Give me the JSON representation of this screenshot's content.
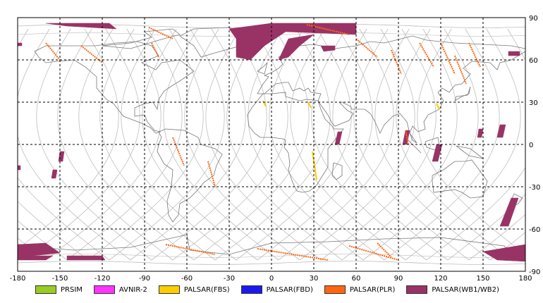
{
  "chart_data": {
    "type": "map",
    "projection": "equirectangular",
    "xlim": [
      -180,
      180
    ],
    "ylim": [
      -90,
      90
    ],
    "x_ticks": [
      -180,
      -150,
      -120,
      -90,
      -60,
      -30,
      0,
      30,
      60,
      90,
      120,
      150,
      180
    ],
    "x_tick_labels": [
      "-180",
      "-150",
      "-120",
      "-90",
      "-60",
      "-30",
      "0",
      "30",
      "60",
      "90",
      "120",
      "150",
      "180"
    ],
    "y_ticks": [
      90,
      60,
      30,
      0,
      -30,
      -60,
      -90
    ],
    "y_tick_labels": [
      "90",
      "60",
      "30",
      "0",
      "-30",
      "-60",
      "-90"
    ],
    "grid": "dashed",
    "orbit_track_color": "#bdbdbd",
    "coast_color": "#777777",
    "legend": [
      {
        "label": "PRSIM",
        "color": "#99cc22"
      },
      {
        "label": "AVNIR-2",
        "color": "#ff33ff"
      },
      {
        "label": "PALSAR(FBS)",
        "color": "#ffcc00"
      },
      {
        "label": "PALSAR(FBD)",
        "color": "#1a1aee"
      },
      {
        "label": "PALSAR(PLR)",
        "color": "#ff6611"
      },
      {
        "label": "PALSAR(WB1/WB2)",
        "color": "#993366"
      }
    ],
    "footprints_wb": [
      [
        [
          -160,
          86
        ],
        [
          -115,
          86
        ],
        [
          -110,
          82
        ],
        [
          -145,
          84
        ]
      ],
      [
        [
          -30,
          82
        ],
        [
          0,
          86
        ],
        [
          60,
          86
        ],
        [
          60,
          78
        ],
        [
          10,
          80
        ],
        [
          -5,
          70
        ],
        [
          -15,
          60
        ],
        [
          -25,
          62
        ],
        [
          -25,
          75
        ]
      ],
      [
        [
          5,
          60
        ],
        [
          12,
          75
        ],
        [
          30,
          78
        ],
        [
          20,
          70
        ],
        [
          12,
          62
        ]
      ],
      [
        [
          35,
          70
        ],
        [
          45,
          70
        ],
        [
          45,
          67
        ],
        [
          37,
          66
        ]
      ],
      [
        [
          -180,
          72
        ],
        [
          -177,
          72
        ],
        [
          -177,
          70
        ],
        [
          -180,
          70
        ]
      ],
      [
        [
          168,
          66
        ],
        [
          176,
          66
        ],
        [
          176,
          63
        ],
        [
          168,
          63
        ]
      ],
      [
        [
          -150,
          -5
        ],
        [
          -147,
          -5
        ],
        [
          -148,
          -12
        ],
        [
          -151,
          -12
        ]
      ],
      [
        [
          -155,
          -18
        ],
        [
          -152,
          -18
        ],
        [
          -153,
          -24
        ],
        [
          -156,
          -24
        ]
      ],
      [
        [
          -180,
          -15
        ],
        [
          -178,
          -15
        ],
        [
          -178,
          -18
        ],
        [
          -180,
          -18
        ]
      ],
      [
        [
          47,
          9
        ],
        [
          50,
          9
        ],
        [
          48,
          0
        ],
        [
          45,
          0
        ]
      ],
      [
        [
          95,
          10
        ],
        [
          98,
          10
        ],
        [
          96,
          0
        ],
        [
          93,
          0
        ]
      ],
      [
        [
          117,
          0
        ],
        [
          121,
          0
        ],
        [
          118,
          -12
        ],
        [
          114,
          -12
        ]
      ],
      [
        [
          147,
          11
        ],
        [
          150,
          11
        ],
        [
          149,
          5
        ],
        [
          146,
          5
        ]
      ],
      [
        [
          162,
          14
        ],
        [
          166,
          14
        ],
        [
          164,
          5
        ],
        [
          160,
          5
        ]
      ],
      [
        [
          170,
          -38
        ],
        [
          175,
          -38
        ],
        [
          168,
          -58
        ],
        [
          162,
          -58
        ]
      ],
      [
        [
          -180,
          -71
        ],
        [
          -160,
          -70
        ],
        [
          -150,
          -77
        ],
        [
          -180,
          -80
        ]
      ],
      [
        [
          -180,
          -78
        ],
        [
          -168,
          -79
        ],
        [
          -155,
          -79
        ],
        [
          -160,
          -82
        ],
        [
          -180,
          -82
        ]
      ],
      [
        [
          -145,
          -79
        ],
        [
          -120,
          -79
        ],
        [
          -118,
          -82
        ],
        [
          -145,
          -82
        ]
      ],
      [
        [
          150,
          -76
        ],
        [
          180,
          -71
        ],
        [
          180,
          -83
        ],
        [
          160,
          -82
        ]
      ]
    ],
    "strips_plr": [
      [
        [
          -160,
          72
        ],
        [
          -150,
          60
        ]
      ],
      [
        [
          -135,
          70
        ],
        [
          -120,
          58
        ]
      ],
      [
        [
          -85,
          72
        ],
        [
          -80,
          62
        ]
      ],
      [
        [
          -87,
          83
        ],
        [
          -70,
          75
        ]
      ],
      [
        [
          -70,
          5
        ],
        [
          -62,
          -15
        ]
      ],
      [
        [
          -45,
          -12
        ],
        [
          -40,
          -30
        ]
      ],
      [
        [
          -75,
          -71
        ],
        [
          -40,
          -78
        ]
      ],
      [
        [
          -10,
          -74
        ],
        [
          40,
          -82
        ]
      ],
      [
        [
          55,
          -72
        ],
        [
          90,
          -82
        ]
      ],
      [
        [
          75,
          -70
        ],
        [
          85,
          -80
        ]
      ],
      [
        [
          60,
          75
        ],
        [
          75,
          62
        ]
      ],
      [
        [
          85,
          67
        ],
        [
          92,
          50
        ]
      ],
      [
        [
          105,
          72
        ],
        [
          115,
          55
        ]
      ],
      [
        [
          120,
          72
        ],
        [
          130,
          50
        ]
      ],
      [
        [
          140,
          72
        ],
        [
          148,
          55
        ]
      ],
      [
        [
          130,
          63
        ],
        [
          138,
          43
        ]
      ],
      [
        [
          25,
          85
        ],
        [
          55,
          78
        ]
      ],
      [
        [
          95,
          10
        ],
        [
          97,
          0
        ]
      ]
    ],
    "strips_fbs": [
      [
        [
          -6,
          31
        ],
        [
          -4,
          27
        ]
      ],
      [
        [
          26,
          30
        ],
        [
          28,
          26
        ]
      ],
      [
        [
          117,
          29
        ],
        [
          119,
          25
        ]
      ],
      [
        [
          29,
          -5
        ],
        [
          32,
          -25
        ]
      ]
    ]
  }
}
